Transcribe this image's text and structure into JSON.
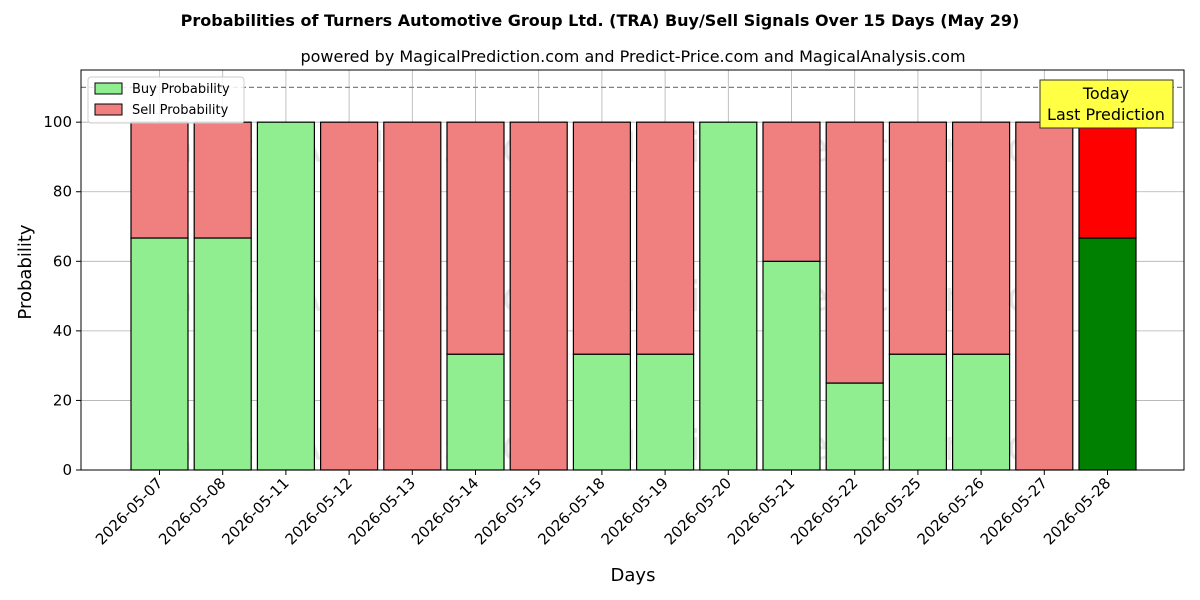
{
  "chart_data": {
    "type": "bar",
    "stacked": true,
    "title": "Probabilities of Turners Automotive Group Ltd. (TRA) Buy/Sell Signals Over 15 Days (May 29)",
    "subtitle": "powered by MagicalPrediction.com and Predict-Price.com and MagicalAnalysis.com",
    "xlabel": "Days",
    "ylabel": "Probability",
    "ylim": [
      0,
      115
    ],
    "yticks": [
      0,
      20,
      40,
      60,
      80,
      100
    ],
    "grid": true,
    "legend_position": "top-left",
    "reference_line": 110,
    "categories": [
      "2026-05-07",
      "2026-05-08",
      "2026-05-11",
      "2026-05-12",
      "2026-05-13",
      "2026-05-14",
      "2026-05-15",
      "2026-05-18",
      "2026-05-19",
      "2026-05-20",
      "2026-05-21",
      "2026-05-22",
      "2026-05-25",
      "2026-05-26",
      "2026-05-27",
      "2026-05-28"
    ],
    "series": [
      {
        "name": "Buy Probability",
        "color": "#90ee90",
        "highlight_color": "#008000",
        "values": [
          66.7,
          66.7,
          100,
          0,
          0,
          33.3,
          0,
          33.3,
          33.3,
          100,
          60,
          25,
          33.3,
          33.3,
          0,
          66.7
        ]
      },
      {
        "name": "Sell Probability",
        "color": "#f08080",
        "highlight_color": "#ff0000",
        "values": [
          33.3,
          33.3,
          0,
          100,
          100,
          66.7,
          100,
          66.7,
          66.7,
          0,
          40,
          75,
          66.7,
          66.7,
          100,
          33.3
        ]
      }
    ],
    "highlight_index": 15,
    "annotation": {
      "lines": [
        "Today",
        "Last Prediction"
      ],
      "color": "#ffff44"
    },
    "watermarks": [
      "MagicalAnalysis.com",
      "MagicalPrediction.com"
    ]
  }
}
